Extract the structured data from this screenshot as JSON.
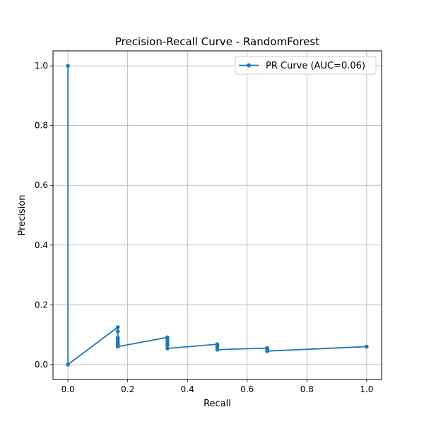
{
  "chart_data": {
    "type": "line",
    "title": "Precision-Recall Curve - RandomForest",
    "xlabel": "Recall",
    "ylabel": "Precision",
    "xlim": [
      -0.05,
      1.05
    ],
    "ylim": [
      -0.05,
      1.05
    ],
    "xticks": [
      0.0,
      0.2,
      0.4,
      0.6,
      0.8,
      1.0
    ],
    "yticks": [
      0.0,
      0.2,
      0.4,
      0.6,
      0.8,
      1.0
    ],
    "xtick_labels": [
      "0.0",
      "0.2",
      "0.4",
      "0.6",
      "0.8",
      "1.0"
    ],
    "ytick_labels": [
      "0.0",
      "0.2",
      "0.4",
      "0.6",
      "0.8",
      "1.0"
    ],
    "grid": true,
    "legend_position": "top-right",
    "series": [
      {
        "name": "PR Curve (AUC=0.06)",
        "color": "#1f77b4",
        "marker": "circle",
        "x": [
          1.0,
          0.667,
          0.667,
          0.667,
          0.5,
          0.5,
          0.5,
          0.5,
          0.333,
          0.333,
          0.333,
          0.333,
          0.333,
          0.167,
          0.167,
          0.167,
          0.167,
          0.167,
          0.167,
          0.167,
          0.0,
          0.0
        ],
        "y": [
          0.06,
          0.045,
          0.05,
          0.055,
          0.05,
          0.059,
          0.063,
          0.068,
          0.054,
          0.065,
          0.072,
          0.082,
          0.091,
          0.06,
          0.067,
          0.074,
          0.083,
          0.09,
          0.111,
          0.125,
          0.0,
          1.0
        ]
      }
    ]
  }
}
